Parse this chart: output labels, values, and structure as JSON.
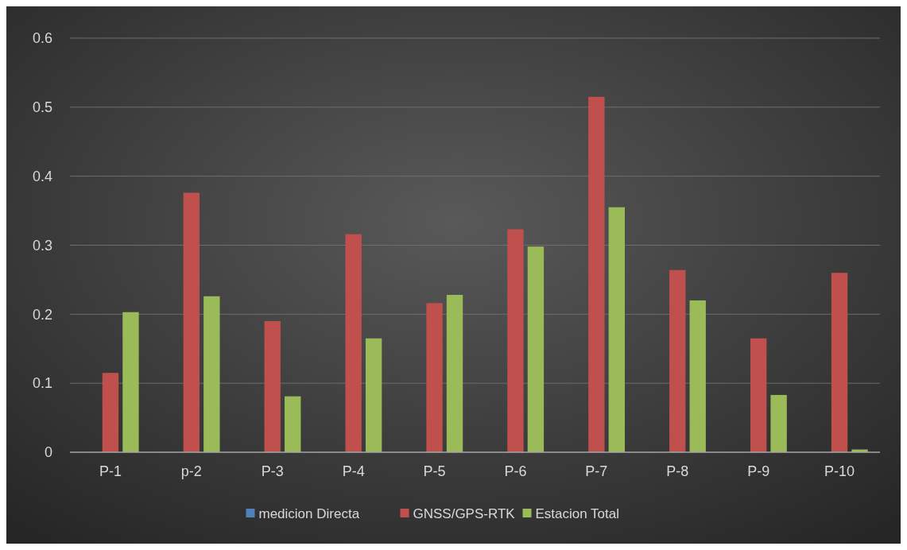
{
  "chart_data": {
    "type": "bar",
    "categories": [
      "P-1",
      "p-2",
      "P-3",
      "P-4",
      "P-5",
      "P-6",
      "P-7",
      "P-8",
      "P-9",
      "P-10"
    ],
    "series": [
      {
        "name": "medicion Directa",
        "color": "#4f81bd",
        "values": [
          0,
          0,
          0,
          0,
          0,
          0,
          0,
          0,
          0,
          0
        ]
      },
      {
        "name": "GNSS/GPS-RTK",
        "color": "#c0504d",
        "values": [
          0.115,
          0.376,
          0.19,
          0.316,
          0.216,
          0.323,
          0.515,
          0.264,
          0.165,
          0.26
        ]
      },
      {
        "name": "Estacion Total",
        "color": "#9bbb59",
        "values": [
          0.203,
          0.226,
          0.081,
          0.165,
          0.228,
          0.298,
          0.355,
          0.22,
          0.083,
          0.004
        ]
      }
    ],
    "ylim": [
      0,
      0.6
    ],
    "yticks": [
      0,
      0.1,
      0.2,
      0.3,
      0.4,
      0.5,
      0.6
    ],
    "grid": "y",
    "legend": "bottom"
  }
}
